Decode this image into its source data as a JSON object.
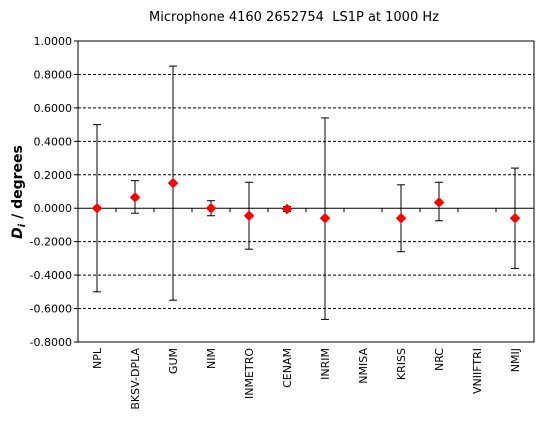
{
  "chart_data": {
    "type": "scatter",
    "title": "Microphone 4160 2652754  LS1P at 1000 Hz",
    "ylabel_symbol": "D",
    "ylabel_subscript": "i",
    "ylabel_unit": " / degrees",
    "xlabel": "",
    "ylim": [
      -0.8,
      1.0
    ],
    "y_ticks": [
      1.0,
      0.8,
      0.6,
      0.4,
      0.2,
      0.0,
      -0.2,
      -0.4,
      -0.6,
      -0.8
    ],
    "y_tick_labels": [
      "1.0000",
      "0.8000",
      "0.6000",
      "0.4000",
      "0.2000",
      "0.0000",
      "-0.2000",
      "-0.4000",
      "-0.6000",
      "-0.8000"
    ],
    "grid": true,
    "categories": [
      "NPL",
      "BKSV-DPLA",
      "GUM",
      "NIM",
      "INMETRO",
      "CENAM",
      "INRIM",
      "NMISA",
      "KRISS",
      "NRC",
      "VNIIFTRI",
      "NMIJ"
    ],
    "values": [
      0.0,
      0.065,
      0.15,
      0.0,
      -0.045,
      -0.005,
      -0.06,
      null,
      -0.06,
      0.035,
      null,
      -0.06
    ],
    "error_low": [
      -0.5,
      -0.03,
      -0.55,
      -0.045,
      -0.245,
      -0.02,
      -0.665,
      null,
      -0.26,
      -0.075,
      null,
      -0.36
    ],
    "error_high": [
      0.5,
      0.165,
      0.85,
      0.045,
      0.155,
      0.01,
      0.54,
      null,
      0.14,
      0.155,
      null,
      0.24
    ],
    "marker_color": "#ff0000",
    "line_color": "#000000"
  }
}
